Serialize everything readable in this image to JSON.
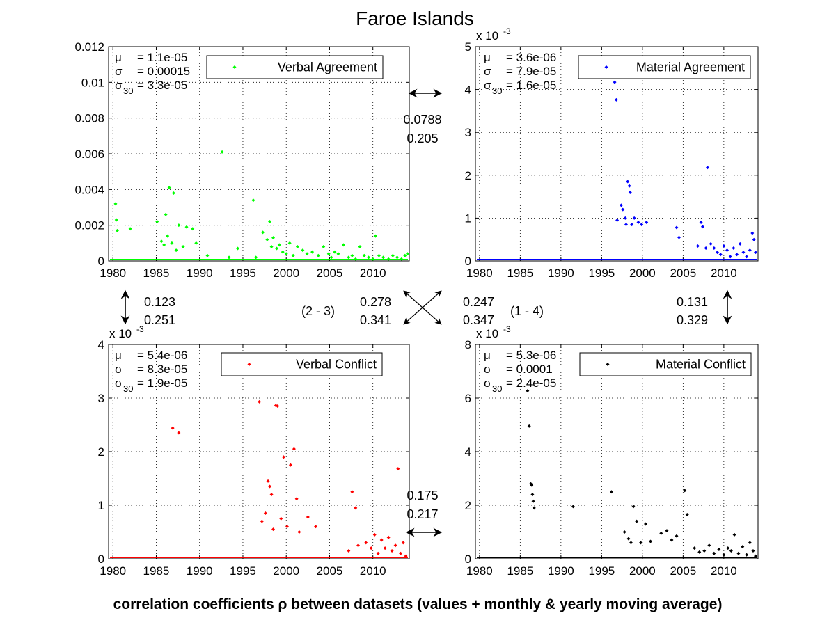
{
  "figure": {
    "title": "Faroe Islands",
    "footer": "correlation coefficients ρ between datasets (values + monthly & yearly moving average)"
  },
  "correlations": {
    "top": [
      "0.0788",
      "0.205"
    ],
    "left": [
      "0.123",
      "0.251"
    ],
    "right": [
      "0.131",
      "0.329"
    ],
    "bottom": [
      "0.175",
      "0.217"
    ],
    "diag_23": [
      "0.278",
      "0.341"
    ],
    "diag_14": [
      "0.247",
      "0.347"
    ],
    "label_23": "(2 - 3)",
    "label_14": "(1 - 4)"
  },
  "chart_data": [
    {
      "type": "scatter",
      "id": "p1",
      "legend": "Verbal Agreement",
      "color": "#00ff00",
      "scale_label": "",
      "stats": {
        "mu_label": "μ",
        "mu": "= 1.1e-05",
        "sigma_label": "σ",
        "sigma": "= 0.00015",
        "sigma30_label": "σ",
        "sigma30_sub": "30",
        "sigma30": "= 3.3e-05"
      },
      "xlim": [
        1979.5,
        2014.2
      ],
      "ylim": [
        0,
        0.012
      ],
      "xticks": [
        1980,
        1985,
        1990,
        1995,
        2000,
        2005,
        2010
      ],
      "xtick_labels": [
        "1980",
        "1985",
        "1990",
        "1995",
        "2000",
        "2005",
        "2010"
      ],
      "yticks": [
        0,
        0.002,
        0.004,
        0.006,
        0.008,
        0.01,
        0.012
      ],
      "ytick_labels": [
        "0",
        "0.002",
        "0.004",
        "0.006",
        "0.008",
        "0.01",
        "0.012"
      ],
      "x": [
        1980.3,
        1980.4,
        1980.5,
        1982.0,
        1985.1,
        1985.6,
        1985.9,
        1986.1,
        1986.3,
        1986.5,
        1986.8,
        1987.0,
        1987.3,
        1987.6,
        1988.1,
        1988.5,
        1989.2,
        1989.6,
        1990.9,
        1992.6,
        1993.4,
        1994.4,
        1996.2,
        1996.5,
        1997.3,
        1997.8,
        1998.1,
        1998.3,
        1998.5,
        1998.9,
        1999.2,
        1999.6,
        2000.0,
        2000.4,
        2000.8,
        2001.3,
        2001.9,
        2002.4,
        2003.0,
        2003.7,
        2004.3,
        2004.9,
        2005.2,
        2005.6,
        2006.0,
        2006.6,
        2007.2,
        2007.6,
        2008.0,
        2008.5,
        2009.0,
        2009.5,
        2010.0,
        2010.3,
        2010.7,
        2011.2,
        2011.8,
        2012.3,
        2012.8,
        2013.3,
        2013.7,
        2014.0
      ],
      "y": [
        0.0032,
        0.0023,
        0.0017,
        0.0018,
        0.0022,
        0.0011,
        0.0009,
        0.0026,
        0.0014,
        0.0041,
        0.001,
        0.0038,
        0.0006,
        0.002,
        0.0008,
        0.0019,
        0.0018,
        0.001,
        0.0003,
        0.0061,
        0.0002,
        0.0007,
        0.0034,
        0.0002,
        0.0016,
        0.0012,
        0.0022,
        0.0008,
        0.0013,
        0.0007,
        0.0009,
        0.0005,
        0.0004,
        0.001,
        0.0003,
        0.0008,
        0.0006,
        0.0004,
        0.0005,
        0.0003,
        0.0008,
        0.0004,
        0.0002,
        0.0005,
        0.0004,
        0.0009,
        0.0002,
        0.0003,
        0.0001,
        0.0008,
        0.0003,
        0.0002,
        0.0001,
        0.0014,
        0.0003,
        0.0002,
        0.0001,
        0.0003,
        0.0002,
        0.0001,
        0.0003,
        0.0004
      ]
    },
    {
      "type": "scatter",
      "id": "p2",
      "legend": "Material Agreement",
      "color": "#0000ff",
      "scale_label": "x 10",
      "scale_exp": "-3",
      "stats": {
        "mu_label": "μ",
        "mu": "= 3.6e-06",
        "sigma_label": "σ",
        "sigma": "= 7.9e-05",
        "sigma30_label": "σ",
        "sigma30_sub": "30",
        "sigma30": "= 1.6e-05"
      },
      "xlim": [
        1979.5,
        2014.2
      ],
      "ylim": [
        0,
        5
      ],
      "xticks": [
        1980,
        1985,
        1990,
        1995,
        2000,
        2005,
        2010
      ],
      "xtick_labels": [
        "1980",
        "1985",
        "1990",
        "1995",
        "2000",
        "2005",
        "2010"
      ],
      "yticks": [
        0,
        1,
        2,
        3,
        4,
        5
      ],
      "ytick_labels": [
        "0",
        "1",
        "2",
        "3",
        "4",
        "5"
      ],
      "x": [
        1996.6,
        1996.8,
        1996.9,
        1997.4,
        1997.6,
        1997.9,
        1998.0,
        1998.2,
        1998.4,
        1998.5,
        1998.7,
        1999.0,
        1999.5,
        1999.9,
        2000.5,
        2004.2,
        2004.5,
        2006.8,
        2007.2,
        2007.4,
        2007.8,
        2008.0,
        2008.4,
        2008.8,
        2009.2,
        2009.6,
        2010.0,
        2010.4,
        2010.8,
        2011.2,
        2011.6,
        2012.0,
        2012.4,
        2012.8,
        2013.2,
        2013.5,
        2013.7,
        2013.9
      ],
      "y": [
        4.17,
        3.76,
        0.95,
        1.3,
        1.2,
        1.0,
        0.85,
        1.85,
        1.75,
        1.6,
        0.85,
        1.0,
        0.9,
        0.85,
        0.9,
        0.78,
        0.55,
        0.35,
        0.9,
        0.8,
        0.3,
        2.18,
        0.4,
        0.3,
        0.2,
        0.15,
        0.35,
        0.25,
        0.1,
        0.3,
        0.15,
        0.4,
        0.2,
        0.1,
        0.25,
        0.65,
        0.5,
        0.2
      ]
    },
    {
      "type": "scatter",
      "id": "p3",
      "legend": "Verbal Conflict",
      "color": "#ff0000",
      "scale_label": "x 10",
      "scale_exp": "-3",
      "stats": {
        "mu_label": "μ",
        "mu": "= 5.4e-06",
        "sigma_label": "σ",
        "sigma": "= 8.3e-05",
        "sigma30_label": "σ",
        "sigma30_sub": "30",
        "sigma30": "= 1.9e-05"
      },
      "xlim": [
        1979.5,
        2014.2
      ],
      "ylim": [
        0,
        4
      ],
      "xticks": [
        1980,
        1985,
        1990,
        1995,
        2000,
        2005,
        2010
      ],
      "xtick_labels": [
        "1980",
        "1985",
        "1990",
        "1995",
        "2000",
        "2005",
        "2010"
      ],
      "yticks": [
        0,
        1,
        2,
        3,
        4
      ],
      "ytick_labels": [
        "0",
        "1",
        "2",
        "3",
        "4"
      ],
      "x": [
        1986.9,
        1987.6,
        1996.9,
        1997.2,
        1997.6,
        1997.9,
        1998.1,
        1998.3,
        1998.5,
        1998.8,
        1999.0,
        1999.4,
        1999.7,
        2000.1,
        2000.5,
        2000.9,
        2001.2,
        2001.5,
        2002.5,
        2003.4,
        2007.2,
        2007.6,
        2008.0,
        2008.3,
        2009.2,
        2009.8,
        2010.2,
        2010.6,
        2011.0,
        2011.4,
        2011.8,
        2012.2,
        2012.6,
        2012.9,
        2013.2,
        2013.5,
        2013.8
      ],
      "y": [
        2.44,
        2.35,
        2.93,
        0.7,
        0.85,
        1.45,
        1.35,
        1.2,
        0.55,
        2.86,
        2.85,
        0.75,
        1.9,
        0.6,
        1.75,
        2.05,
        1.12,
        0.5,
        0.78,
        0.6,
        0.15,
        1.25,
        0.95,
        0.25,
        0.3,
        0.2,
        0.45,
        0.1,
        0.35,
        0.2,
        0.4,
        0.15,
        0.25,
        1.68,
        0.1,
        0.3,
        0.05
      ]
    },
    {
      "type": "scatter",
      "id": "p4",
      "legend": "Material Conflict",
      "color": "#000000",
      "scale_label": "x 10",
      "scale_exp": "-3",
      "stats": {
        "mu_label": "μ",
        "mu": "= 5.3e-06",
        "sigma_label": "σ",
        "sigma": "= 0.0001",
        "sigma30_label": "σ",
        "sigma30_sub": "30",
        "sigma30": "= 2.4e-05"
      },
      "xlim": [
        1979.5,
        2014.2
      ],
      "ylim": [
        0,
        8
      ],
      "xticks": [
        1980,
        1985,
        1990,
        1995,
        2000,
        2005,
        2010
      ],
      "xtick_labels": [
        "1980",
        "1985",
        "1990",
        "1995",
        "2000",
        "2005",
        "2010"
      ],
      "yticks": [
        0,
        2,
        4,
        6,
        8
      ],
      "ytick_labels": [
        "0",
        "2",
        "4",
        "6",
        "8"
      ],
      "x": [
        1985.9,
        1986.1,
        1986.3,
        1986.4,
        1986.5,
        1986.6,
        1986.7,
        1991.5,
        1996.2,
        1997.8,
        1998.3,
        1998.6,
        1998.9,
        1999.3,
        1999.8,
        2000.4,
        2001.0,
        2002.3,
        2003.0,
        2003.6,
        2004.2,
        2005.2,
        2005.5,
        2006.4,
        2007.0,
        2007.6,
        2008.2,
        2008.8,
        2009.4,
        2010.0,
        2010.5,
        2010.9,
        2011.3,
        2011.8,
        2012.3,
        2012.8,
        2013.2,
        2013.6,
        2013.9
      ],
      "y": [
        6.27,
        4.95,
        2.8,
        2.75,
        2.4,
        2.15,
        1.9,
        1.95,
        2.5,
        1.0,
        0.75,
        0.6,
        1.95,
        1.4,
        0.6,
        1.3,
        0.65,
        0.95,
        1.05,
        0.7,
        0.85,
        2.55,
        1.65,
        0.4,
        0.25,
        0.3,
        0.5,
        0.2,
        0.35,
        0.15,
        0.4,
        0.3,
        0.9,
        0.2,
        0.45,
        0.15,
        0.6,
        0.3,
        0.1
      ]
    }
  ]
}
